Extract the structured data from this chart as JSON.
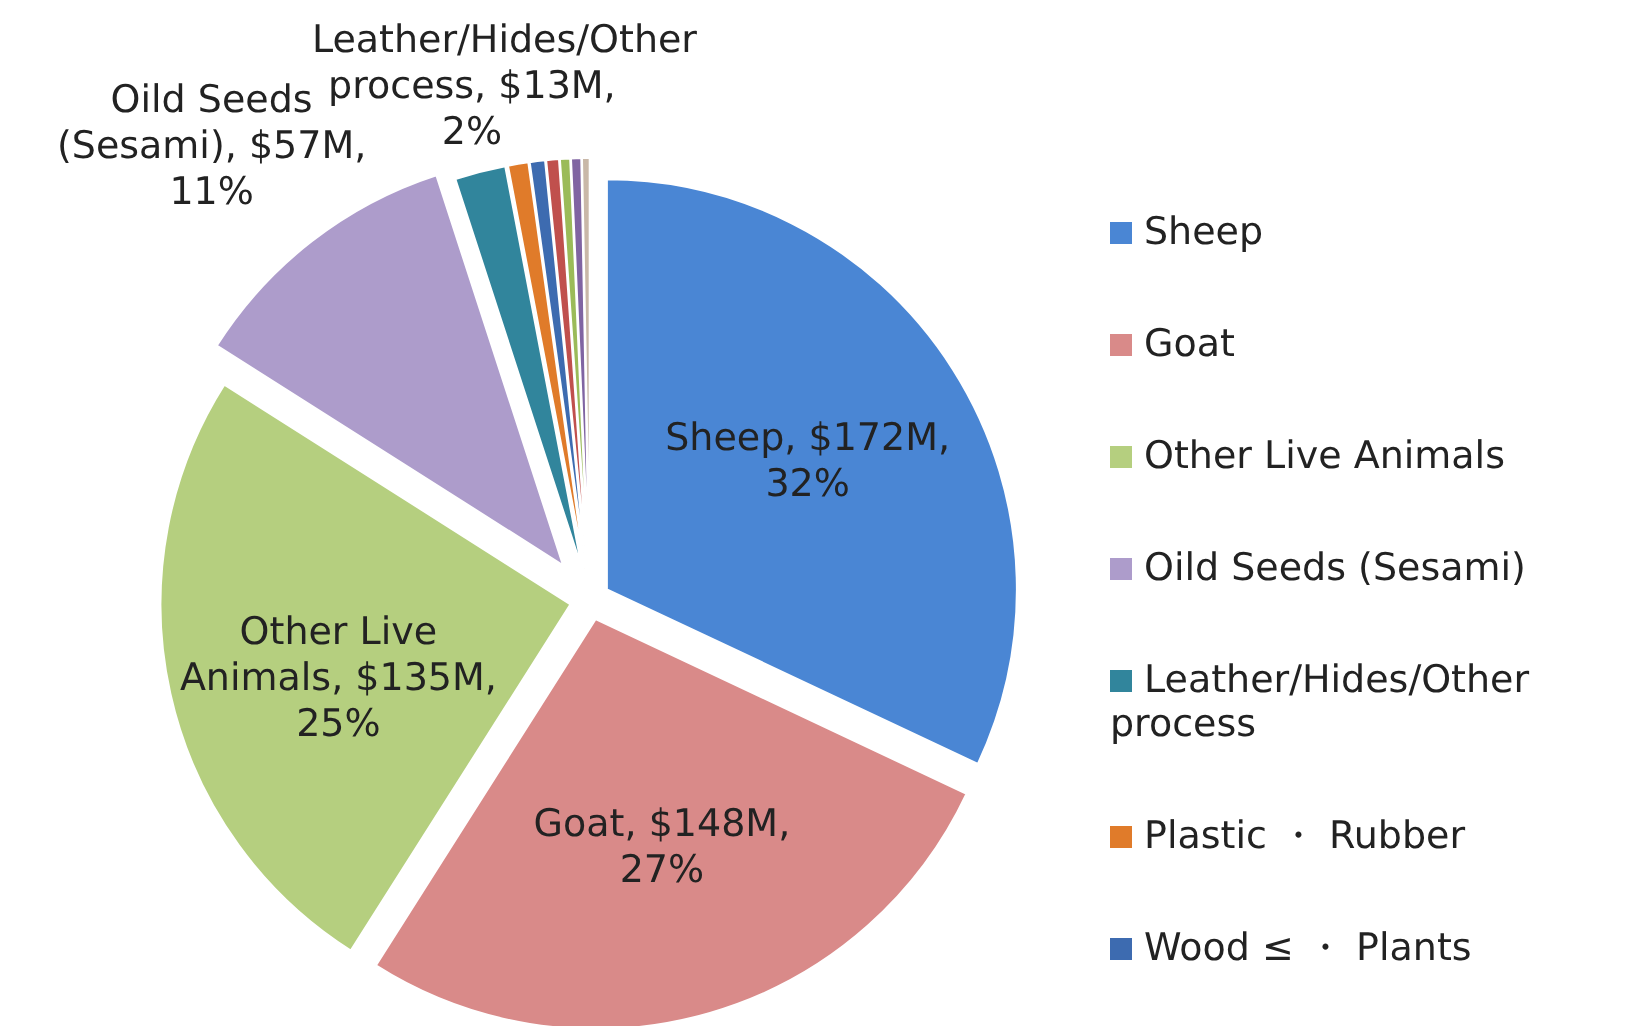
{
  "chart_data": {
    "type": "pie",
    "categories": [
      "Sheep",
      "Goat",
      "Other Live Animals",
      "Oild Seeds (Sesami)",
      "Leather/Hides/Other process",
      "Plastic ・ Rubber",
      "Wood ≤ ・ Plants",
      null,
      null,
      null,
      null
    ],
    "values": [
      32,
      27,
      25,
      11,
      2,
      0.8,
      0.6,
      0.5,
      0.4,
      0.4,
      0.3
    ],
    "colors": [
      "#4a86d4",
      "#d98a89",
      "#b5cf7f",
      "#ad9ccb",
      "#31859c",
      "#e07b2a",
      "#3d6bb0",
      "#c0504d",
      "#9bbb59",
      "#8064a2",
      "#c9b8a8"
    ],
    "value_labels": [
      "Sheep, $172M, 32%",
      "Goat, $148M, 27%",
      "Other Live Animals, $135M, 25%",
      "Oild Seeds (Sesami), $57M, 11%",
      "Leather/Hides/Other process, $13M, 2%",
      null,
      null,
      null,
      null,
      null,
      null
    ],
    "legend": "right"
  }
}
